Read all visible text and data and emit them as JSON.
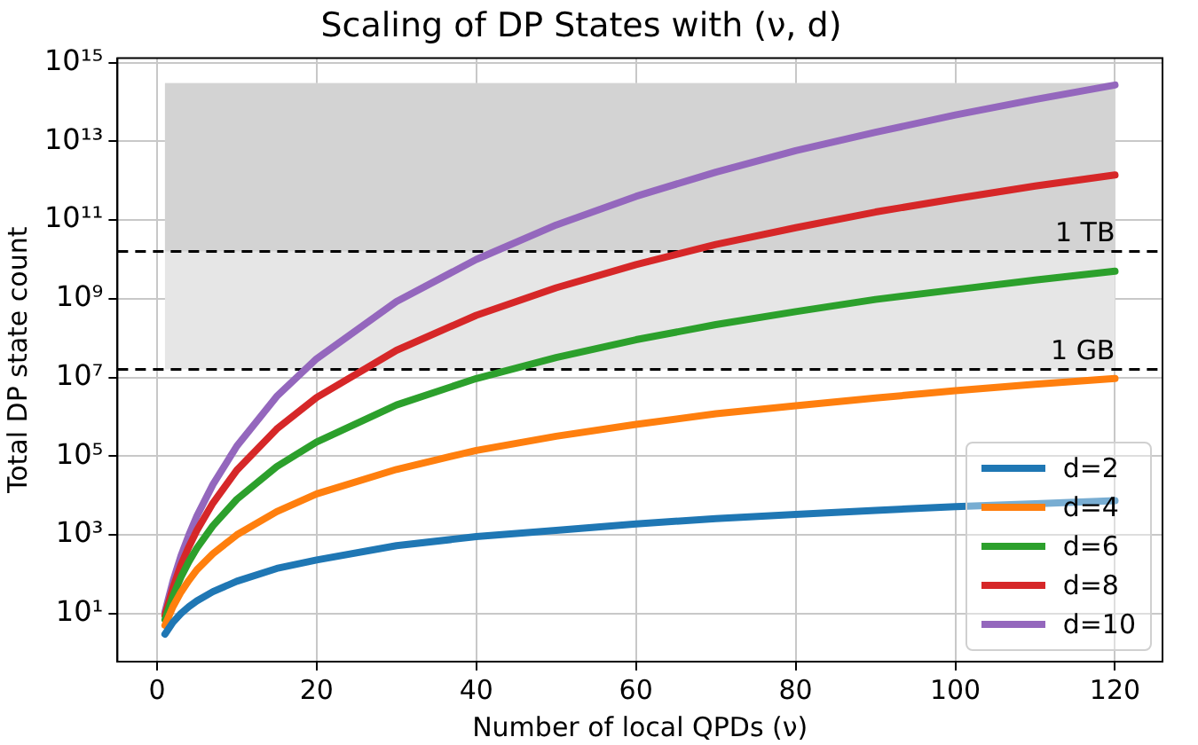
{
  "chart_data": {
    "type": "line",
    "title": "Scaling of DP States with (ν, d)",
    "xlabel": "Number of local QPDs (ν)",
    "ylabel": "Total DP state count",
    "x": [
      1,
      2,
      3,
      4,
      5,
      7,
      10,
      15,
      20,
      30,
      40,
      50,
      60,
      70,
      80,
      90,
      100,
      110,
      120
    ],
    "series": [
      {
        "name": "d=2",
        "color": "#1f77b4",
        "values": [
          3,
          6,
          10,
          15,
          21,
          36,
          66,
          140,
          230,
          530,
          900,
          1300,
          1900,
          2600,
          3300,
          4200,
          5200,
          6200,
          7400
        ]
      },
      {
        "name": "d=4",
        "color": "#ff7f0e",
        "values": [
          5,
          15,
          35,
          70,
          130,
          330,
          1000,
          3900,
          11000,
          46000,
          140000,
          320000,
          640000,
          1200000,
          1900000,
          3000000,
          4600000,
          6700000,
          9400000
        ]
      },
      {
        "name": "d=6",
        "color": "#2ca02c",
        "values": [
          7,
          28,
          84,
          210,
          460,
          1700,
          8000,
          54000,
          230000,
          2000000,
          9400000,
          32000000,
          91000000,
          220000000,
          470000000,
          960000000,
          1700000000,
          3000000000,
          5000000000
        ]
      },
      {
        "name": "d=8",
        "color": "#d62728",
        "values": [
          9,
          45,
          170,
          500,
          1300,
          6400,
          44000,
          490000,
          3100000,
          49000000,
          380000000,
          1900000000,
          7400000000,
          24000000000,
          64000000000,
          160000000000,
          350000000000,
          730000000000,
          1400000000000
        ]
      },
      {
        "name": "d=10",
        "color": "#9467bd",
        "values": [
          11,
          66,
          290,
          1000,
          3000,
          19000,
          180000,
          3300000,
          30000000,
          850000000,
          10000000000,
          75000000000,
          400000000000,
          1650000000000,
          5800000000000,
          17000000000000,
          47000000000000,
          116000000000000,
          270000000000000
        ]
      }
    ],
    "xlim": [
      -4.95,
      125.95
    ],
    "xticks": [
      0,
      20,
      40,
      60,
      80,
      100,
      120
    ],
    "log": "y",
    "ylim": [
      0.6,
      1300000000000000
    ],
    "yticks": [
      {
        "value": 10,
        "label": "10¹"
      },
      {
        "value": 1000,
        "label": "10³"
      },
      {
        "value": 100000,
        "label": "10⁵"
      },
      {
        "value": 10000000,
        "label": "10⁷"
      },
      {
        "value": 1000000000,
        "label": "10⁹"
      },
      {
        "value": 100000000000,
        "label": "10¹¹"
      },
      {
        "value": 10000000000000,
        "label": "10¹³"
      },
      {
        "value": 1000000000000000,
        "label": "10¹⁵"
      }
    ],
    "bands": [
      {
        "axis": "y",
        "from": 16000000,
        "to": 300000000000000,
        "color": "#e6e6e6"
      },
      {
        "axis": "y",
        "from": 16000000000,
        "to": 300000000000000,
        "color": "#d3d3d3"
      }
    ],
    "ref_lines": [
      {
        "axis": "y",
        "value": 16000000,
        "label": "1 GB",
        "line_style": "dashed",
        "color": "#000000"
      },
      {
        "axis": "y",
        "value": 16000000000,
        "label": "1 TB",
        "line_style": "dashed",
        "color": "#000000"
      }
    ],
    "grid": true,
    "legend": "bottom right",
    "marker": "none",
    "line_style": "solid"
  }
}
